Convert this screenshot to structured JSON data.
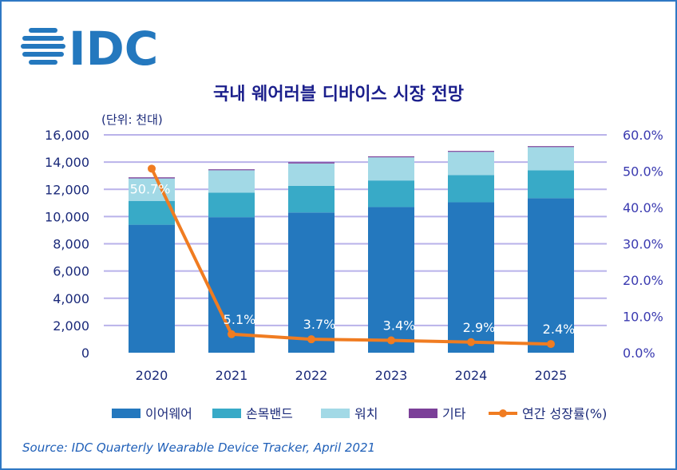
{
  "logo_text": "IDC",
  "chart_data": {
    "type": "bar",
    "title": "국내 웨어러블 디바이스 시장 전망",
    "unit_label": "(단위: 천대)",
    "stacked": true,
    "categories": [
      "2020",
      "2021",
      "2022",
      "2023",
      "2024",
      "2025"
    ],
    "series": [
      {
        "name": "이어웨어",
        "color": "#2478be",
        "values": [
          9400,
          9950,
          10300,
          10700,
          11050,
          11350
        ]
      },
      {
        "name": "손목밴드",
        "color": "#38aac7",
        "values": [
          1750,
          1800,
          1950,
          1950,
          2000,
          2050
        ]
      },
      {
        "name": "워치",
        "color": "#a2d9e6",
        "values": [
          1650,
          1650,
          1650,
          1700,
          1700,
          1700
        ]
      },
      {
        "name": "기타",
        "color": "#7b3f98",
        "values": [
          80,
          70,
          90,
          70,
          70,
          70
        ]
      }
    ],
    "line_series": {
      "name": "연간 성장률(%)",
      "color": "#f07c21",
      "axis": "right",
      "values": [
        50.7,
        5.1,
        3.7,
        3.4,
        2.9,
        2.4
      ],
      "labels": [
        "50.7%",
        "5.1%",
        "3.7%",
        "3.4%",
        "2.9%",
        "2.4%"
      ]
    },
    "ylim": [
      0,
      16000
    ],
    "y_ticks": [
      "0",
      "2,000",
      "4,000",
      "6,000",
      "8,000",
      "10,000",
      "12,000",
      "14,000",
      "16,000"
    ],
    "y2lim": [
      0,
      60
    ],
    "y2_ticks": [
      "0.0%",
      "10.0%",
      "20.0%",
      "30.0%",
      "40.0%",
      "50.0%",
      "60.0%"
    ],
    "grid": true,
    "legend_position": "bottom"
  },
  "source": "Source: IDC Quarterly Wearable Device Tracker, April 2021"
}
